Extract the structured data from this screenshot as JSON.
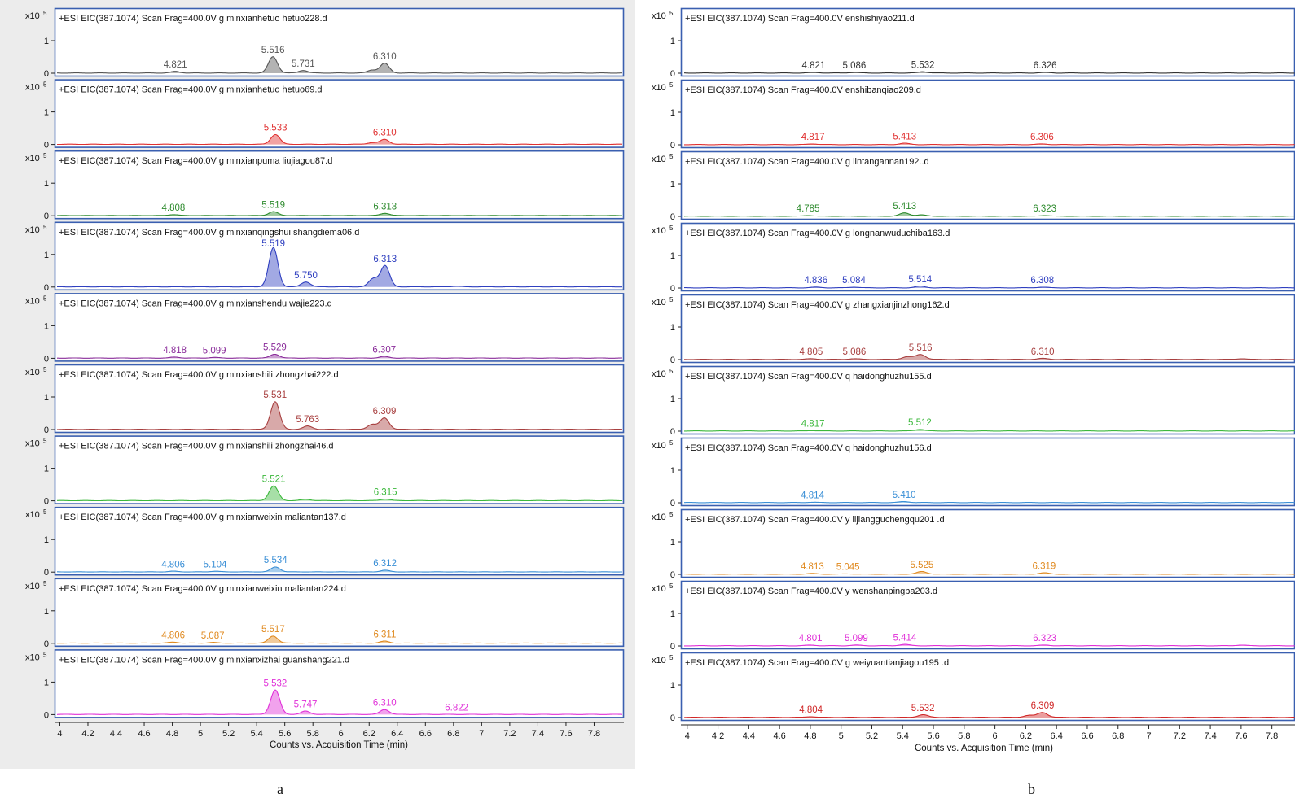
{
  "figure": {
    "caption_a": "a",
    "caption_b": "b"
  },
  "common": {
    "scale_label": "x10",
    "scale_exp": "5",
    "y_ticks": [
      "1",
      "0"
    ],
    "x_ticks": [
      "4",
      "4.2",
      "4.4",
      "4.6",
      "4.8",
      "5",
      "5.2",
      "5.4",
      "5.6",
      "5.8",
      "6",
      "6.2",
      "6.4",
      "6.6",
      "6.8",
      "7",
      "7.2",
      "7.4",
      "7.6",
      "7.8"
    ],
    "xlabel": "Counts vs. Acquisition Time (min)"
  },
  "chart_data": [
    {
      "type": "line",
      "panel": "a",
      "xlabel": "Counts vs. Acquisition Time (min)",
      "ylabel_scale": "x10^5",
      "xlim": [
        3.98,
        8.0
      ],
      "ylim": [
        0,
        1.45
      ],
      "series": [
        {
          "name": "+ESI EIC(387.1074) Scan Frag=400.0V g minxianhetuo hetuo228.d",
          "color": "#555555",
          "peaks": [
            {
              "x": 4.821,
              "y": 0.05,
              "label": "4.821"
            },
            {
              "x": 5.516,
              "y": 0.5,
              "label": "5.516"
            },
            {
              "x": 5.731,
              "y": 0.08,
              "label": "5.731"
            },
            {
              "x": 6.22,
              "y": 0.09
            },
            {
              "x": 6.31,
              "y": 0.3,
              "label": "6.310"
            }
          ]
        },
        {
          "name": "+ESI EIC(387.1074) Scan Frag=400.0V g minxianhetuo hetuo69.d",
          "color": "#e03030",
          "peaks": [
            {
              "x": 5.533,
              "y": 0.3,
              "label": "5.533"
            },
            {
              "x": 6.22,
              "y": 0.05
            },
            {
              "x": 6.31,
              "y": 0.15,
              "label": "6.310"
            }
          ]
        },
        {
          "name": "+ESI EIC(387.1074) Scan Frag=400.0V g minxianpuma liujiagou87.d",
          "color": "#2e8b2e",
          "peaks": [
            {
              "x": 4.808,
              "y": 0.03,
              "label": "4.808"
            },
            {
              "x": 5.519,
              "y": 0.12,
              "label": "5.519"
            },
            {
              "x": 6.313,
              "y": 0.07,
              "label": "6.313"
            }
          ]
        },
        {
          "name": "+ESI EIC(387.1074) Scan Frag=400.0V g minxianqingshui shangdiema06.d",
          "color": "#3040c0",
          "peaks": [
            {
              "x": 5.519,
              "y": 1.2,
              "label": "5.519"
            },
            {
              "x": 5.75,
              "y": 0.15,
              "label": "5.750"
            },
            {
              "x": 6.23,
              "y": 0.25
            },
            {
              "x": 6.313,
              "y": 0.65,
              "label": "6.313"
            },
            {
              "x": 6.82,
              "y": 0.02
            }
          ]
        },
        {
          "name": "+ESI EIC(387.1074) Scan Frag=400.0V g minxianshendu wajie223.d",
          "color": "#8a2c9a",
          "peaks": [
            {
              "x": 4.818,
              "y": 0.03,
              "label": "4.818"
            },
            {
              "x": 5.099,
              "y": 0.02,
              "label": "5.099"
            },
            {
              "x": 5.529,
              "y": 0.12,
              "label": "5.529"
            },
            {
              "x": 6.307,
              "y": 0.05,
              "label": "6.307"
            }
          ]
        },
        {
          "name": "+ESI EIC(387.1074) Scan Frag=400.0V g minxianshili zhongzhai222.d",
          "color": "#a84040",
          "peaks": [
            {
              "x": 5.531,
              "y": 0.85,
              "label": "5.531"
            },
            {
              "x": 5.763,
              "y": 0.1,
              "label": "5.763"
            },
            {
              "x": 6.22,
              "y": 0.15
            },
            {
              "x": 6.309,
              "y": 0.35,
              "label": "6.309"
            }
          ]
        },
        {
          "name": "+ESI EIC(387.1074) Scan Frag=400.0V g minxianshili zhongzhai46.d",
          "color": "#3cb83c",
          "peaks": [
            {
              "x": 5.521,
              "y": 0.45,
              "label": "5.521"
            },
            {
              "x": 5.75,
              "y": 0.04
            },
            {
              "x": 6.315,
              "y": 0.05,
              "label": "6.315"
            }
          ]
        },
        {
          "name": "+ESI EIC(387.1074) Scan Frag=400.0V g minxianweixin maliantan137.d",
          "color": "#3a8fd6",
          "peaks": [
            {
              "x": 4.806,
              "y": 0.02,
              "label": "4.806"
            },
            {
              "x": 5.104,
              "y": 0.02,
              "label": "5.104"
            },
            {
              "x": 5.534,
              "y": 0.15,
              "label": "5.534"
            },
            {
              "x": 6.312,
              "y": 0.05,
              "label": "6.312"
            }
          ]
        },
        {
          "name": "+ESI EIC(387.1074) Scan Frag=400.0V g minxianweixin maliantan224.d",
          "color": "#e08a20",
          "peaks": [
            {
              "x": 4.806,
              "y": 0.03,
              "label": "4.806"
            },
            {
              "x": 5.087,
              "y": 0.02,
              "label": "5.087"
            },
            {
              "x": 5.517,
              "y": 0.22,
              "label": "5.517"
            },
            {
              "x": 6.311,
              "y": 0.06,
              "label": "6.311"
            }
          ]
        },
        {
          "name": "+ESI EIC(387.1074) Scan Frag=400.0V g minxianxizhai guanshang221.d",
          "color": "#e030d8",
          "peaks": [
            {
              "x": 5.532,
              "y": 0.75,
              "label": "5.532"
            },
            {
              "x": 5.747,
              "y": 0.1,
              "label": "5.747"
            },
            {
              "x": 6.31,
              "y": 0.15,
              "label": "6.310"
            },
            {
              "x": 6.822,
              "y": 0.0,
              "label": "6.822"
            }
          ]
        }
      ]
    },
    {
      "type": "line",
      "panel": "b",
      "xlabel": "Counts vs. Acquisition Time (min)",
      "ylabel_scale": "x10^5",
      "xlim": [
        3.98,
        7.95
      ],
      "ylim": [
        0,
        1.45
      ],
      "series": [
        {
          "name": "+ESI EIC(387.1074) Scan Frag=400.0V  enshishiyao211.d",
          "color": "#333333",
          "peaks": [
            {
              "x": 4.821,
              "y": 0.02,
              "label": "4.821"
            },
            {
              "x": 5.086,
              "y": 0.02,
              "label": "5.086"
            },
            {
              "x": 5.532,
              "y": 0.04,
              "label": "5.532"
            },
            {
              "x": 6.326,
              "y": 0.02,
              "label": "6.326"
            }
          ]
        },
        {
          "name": "+ESI EIC(387.1074) Scan Frag=400.0V enshibanqiao209.d",
          "color": "#e03030",
          "peaks": [
            {
              "x": 4.817,
              "y": 0.02,
              "label": "4.817"
            },
            {
              "x": 5.413,
              "y": 0.04,
              "label": "5.413"
            },
            {
              "x": 6.306,
              "y": 0.02,
              "label": "6.306"
            }
          ]
        },
        {
          "name": "+ESI EIC(387.1074) Scan Frag=400.0V g lintangannan192..d",
          "color": "#2e8b2e",
          "peaks": [
            {
              "x": 4.785,
              "y": 0.02,
              "label": "4.785"
            },
            {
              "x": 5.413,
              "y": 0.1,
              "label": "5.413"
            },
            {
              "x": 5.52,
              "y": 0.04
            },
            {
              "x": 6.323,
              "y": 0.02,
              "label": "6.323"
            }
          ]
        },
        {
          "name": "+ESI EIC(387.1074) Scan Frag=400.0V g longnanwuduchiba163.d",
          "color": "#3040c0",
          "peaks": [
            {
              "x": 4.836,
              "y": 0.02,
              "label": "4.836"
            },
            {
              "x": 5.084,
              "y": 0.02,
              "label": "5.084"
            },
            {
              "x": 5.514,
              "y": 0.05,
              "label": "5.514"
            },
            {
              "x": 6.308,
              "y": 0.02,
              "label": "6.308"
            }
          ]
        },
        {
          "name": "+ESI EIC(387.1074) Scan Frag=400.0V g zhangxianjinzhong162.d",
          "color": "#a84040",
          "peaks": [
            {
              "x": 4.805,
              "y": 0.02,
              "label": "4.805"
            },
            {
              "x": 5.086,
              "y": 0.02,
              "label": "5.086"
            },
            {
              "x": 5.43,
              "y": 0.08
            },
            {
              "x": 5.516,
              "y": 0.15,
              "label": "5.516"
            },
            {
              "x": 6.31,
              "y": 0.03,
              "label": "6.310"
            },
            {
              "x": 7.6,
              "y": 0.02
            }
          ]
        },
        {
          "name": "+ESI EIC(387.1074) Scan Frag=400.0V q haidonghuzhu155.d",
          "color": "#3cb83c",
          "peaks": [
            {
              "x": 4.817,
              "y": 0.01,
              "label": "4.817"
            },
            {
              "x": 5.512,
              "y": 0.05,
              "label": "5.512"
            }
          ]
        },
        {
          "name": "+ESI EIC(387.1074) Scan Frag=400.0V q haidonghuzhu156.d",
          "color": "#3a8fd6",
          "peaks": [
            {
              "x": 4.814,
              "y": 0.01,
              "label": "4.814"
            },
            {
              "x": 5.41,
              "y": 0.03,
              "label": "5.410"
            }
          ]
        },
        {
          "name": "+ESI EIC(387.1074) Scan Frag=400.0V y lijiangguchengqu201 .d",
          "color": "#e08a20",
          "peaks": [
            {
              "x": 4.813,
              "y": 0.02,
              "label": "4.813"
            },
            {
              "x": 5.045,
              "y": 0.01,
              "label": "5.045"
            },
            {
              "x": 5.525,
              "y": 0.08,
              "label": "5.525"
            },
            {
              "x": 6.319,
              "y": 0.04,
              "label": "6.319"
            }
          ]
        },
        {
          "name": "+ESI EIC(387.1074) Scan Frag=400.0V y wenshanpingba203.d",
          "color": "#e030d8",
          "peaks": [
            {
              "x": 4.801,
              "y": 0.02,
              "label": "4.801"
            },
            {
              "x": 5.099,
              "y": 0.02,
              "label": "5.099"
            },
            {
              "x": 5.414,
              "y": 0.04,
              "label": "5.414"
            },
            {
              "x": 6.323,
              "y": 0.02,
              "label": "6.323"
            },
            {
              "x": 7.6,
              "y": 0.02
            }
          ]
        },
        {
          "name": "+ESI EIC(387.1074) Scan Frag=400.0V g weiyuantianjiagou195 .d",
          "color": "#d02828",
          "peaks": [
            {
              "x": 4.804,
              "y": 0.02,
              "label": "4.804"
            },
            {
              "x": 5.532,
              "y": 0.08,
              "label": "5.532"
            },
            {
              "x": 6.22,
              "y": 0.06
            },
            {
              "x": 6.309,
              "y": 0.15,
              "label": "6.309"
            }
          ]
        }
      ]
    }
  ]
}
